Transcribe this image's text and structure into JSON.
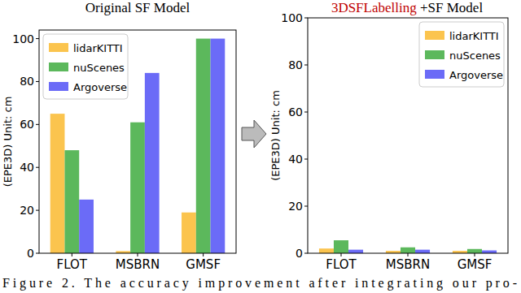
{
  "chart_data": [
    {
      "type": "bar",
      "title": "Original SF Model",
      "y_label": "(EPE3D) Unit: cm",
      "categories": [
        "FLOT",
        "MSBRN",
        "GMSF"
      ],
      "series": [
        {
          "name": "lidarKITTI",
          "color": "#fbc44e",
          "values": [
            65,
            1,
            19
          ]
        },
        {
          "name": "nuScenes",
          "color": "#5cb85c",
          "values": [
            48,
            61,
            100
          ]
        },
        {
          "name": "Argoverse",
          "color": "#6b6bf7",
          "values": [
            25,
            84,
            100
          ]
        }
      ],
      "ylim": [
        0,
        104
      ],
      "yticks": [
        0,
        20,
        40,
        60,
        80,
        100
      ],
      "legend": "upper left",
      "grid": false
    },
    {
      "type": "bar",
      "title": "3DSFLabelling +SF Model",
      "y_label": "(EPE3D) Unit: cm",
      "categories": [
        "FLOT",
        "MSBRN",
        "GMSF"
      ],
      "series": [
        {
          "name": "lidarKITTI",
          "color": "#fbc44e",
          "values": [
            2,
            1,
            1
          ]
        },
        {
          "name": "nuScenes",
          "color": "#5cb85c",
          "values": [
            5.5,
            2.5,
            1.8
          ]
        },
        {
          "name": "Argoverse",
          "color": "#6b6bf7",
          "values": [
            1.5,
            1.5,
            1.2
          ]
        }
      ],
      "ylim": [
        0,
        100
      ],
      "yticks": [
        0,
        20,
        40,
        60,
        80,
        100
      ],
      "legend": "upper right",
      "grid": false
    }
  ],
  "caption": "Figure 2. The accuracy improvement after integrating our pro-"
}
